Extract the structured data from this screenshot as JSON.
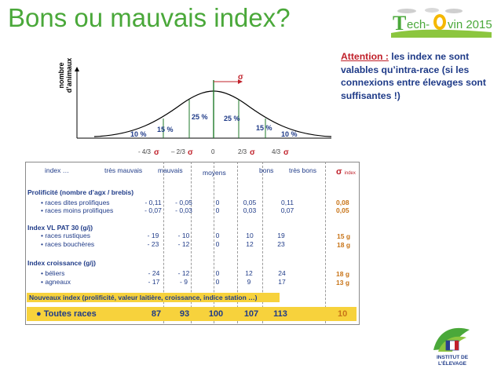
{
  "title": "Bons ou mauvais index?",
  "logo": {
    "text_a": "ech-",
    "text_b": "vin 2015",
    "letter_t": "T",
    "letter_o": "O"
  },
  "attention": {
    "lead": "Attention :",
    "text": " les index ne sont valables qu’intra-race (si les connexions entre élevages sont suffisantes !)"
  },
  "chart": {
    "ylabel_1": "nombre",
    "ylabel_2": "d’animaux",
    "sigma": "σ",
    "pct": [
      "10 %",
      "15 %",
      "25 %",
      "25 %",
      "15 %",
      "10 %"
    ],
    "ticks": [
      "- 4/3",
      "– 2/3",
      "0",
      "2/3",
      "4/3"
    ]
  },
  "header": {
    "index": "index …",
    "tres_mauvais": "très mauvais",
    "mauvais": "mauvais",
    "moyens": "moyens",
    "bons": "bons",
    "tres_bons": "très bons",
    "sigma": "σ",
    "sigma_sub": "index"
  },
  "sections": [
    {
      "title": "Prolificité (nombre d’agx / brebis)",
      "rows": [
        {
          "label": "• races  dites prolifiques",
          "values": [
            "- 0,11",
            "- 0,05",
            "0",
            "0,05",
            "0,11"
          ],
          "sigma": "0,08"
        },
        {
          "label": "• races moins prolifiques",
          "values": [
            "- 0,07",
            "- 0,03",
            "0",
            "0,03",
            "0,07"
          ],
          "sigma": "0,05"
        }
      ]
    },
    {
      "title": "Index VL PAT 30 (g/j)",
      "rows": [
        {
          "label": "• races rustiques",
          "values": [
            "- 19",
            "- 10",
            "0",
            "10",
            "19"
          ],
          "sigma": "15 g"
        },
        {
          "label": "• races bouchères",
          "values": [
            "- 23",
            "- 12",
            "0",
            "12",
            "23"
          ],
          "sigma": "18 g"
        }
      ]
    },
    {
      "title": "Index croissance (g/j)",
      "rows": [
        {
          "label": "• béliers",
          "values": [
            "- 24",
            "- 12",
            "0",
            "12",
            "24"
          ],
          "sigma": "18 g"
        },
        {
          "label": "• agneaux",
          "values": [
            "- 17",
            "- 9",
            "0",
            "9",
            "17"
          ],
          "sigma": "13 g"
        }
      ]
    }
  ],
  "new_index": "Nouveaux index  (prolificité, valeur laitière, croissance, indice station …)",
  "all_races": {
    "label": "● Toutes races",
    "values": [
      "87",
      "93",
      "100",
      "107",
      "113"
    ],
    "sigma": "10"
  },
  "institute": {
    "line1": "INSTITUT DE",
    "line2": "L’ÉLEVAGE"
  }
}
